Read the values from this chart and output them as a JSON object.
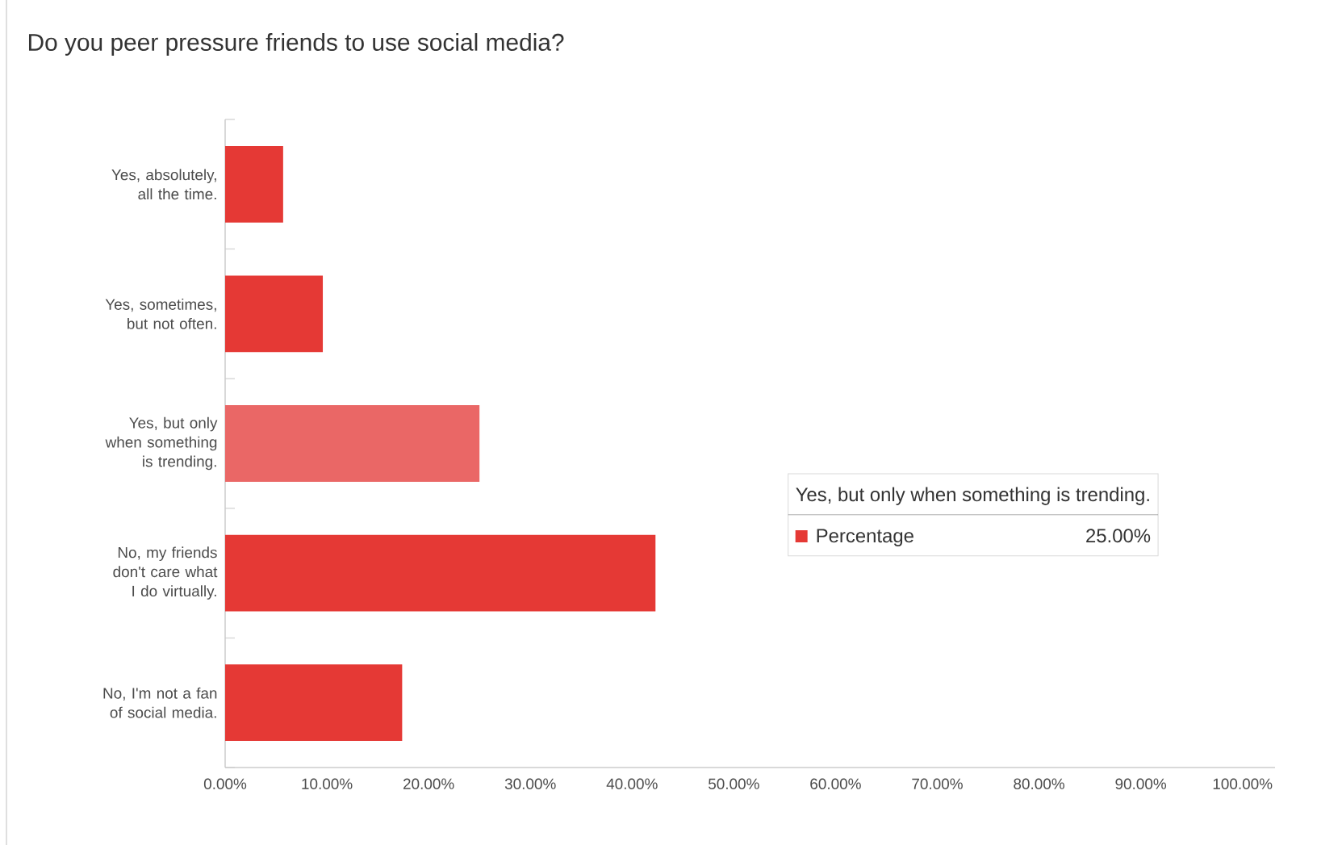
{
  "chart_data": {
    "type": "bar",
    "orientation": "horizontal",
    "title": "Do you peer pressure friends to use social media?",
    "categories": [
      "Yes, absolutely, all the time.",
      "Yes, sometimes, but not often.",
      "Yes, but only when something is trending.",
      "No, my friends don't care what I do virtually.",
      "No, I'm not a fan of social media."
    ],
    "series": [
      {
        "name": "Percentage",
        "color": "#e53935",
        "colors": [
          "#e53935",
          "#e53935",
          "#ea6766",
          "#e53935",
          "#e53935"
        ],
        "values": [
          5.7,
          9.6,
          25.0,
          42.3,
          17.4
        ]
      }
    ],
    "xlim": [
      0,
      103.2
    ],
    "xticks": [
      {
        "value": 0,
        "label": "0.00%"
      },
      {
        "value": 10,
        "label": "10.00%"
      },
      {
        "value": 20,
        "label": "20.00%"
      },
      {
        "value": 30,
        "label": "30.00%"
      },
      {
        "value": 40,
        "label": "40.00%"
      },
      {
        "value": 50,
        "label": "50.00%"
      },
      {
        "value": 60,
        "label": "60.00%"
      },
      {
        "value": 70,
        "label": "70.00%"
      },
      {
        "value": 80,
        "label": "80.00%"
      },
      {
        "value": 90,
        "label": "90.00%"
      },
      {
        "value": 100,
        "label": "100.00%"
      }
    ],
    "annotations": [
      "Yes, but only when something is trending.",
      "25.00%"
    ],
    "grid": false
  }
}
